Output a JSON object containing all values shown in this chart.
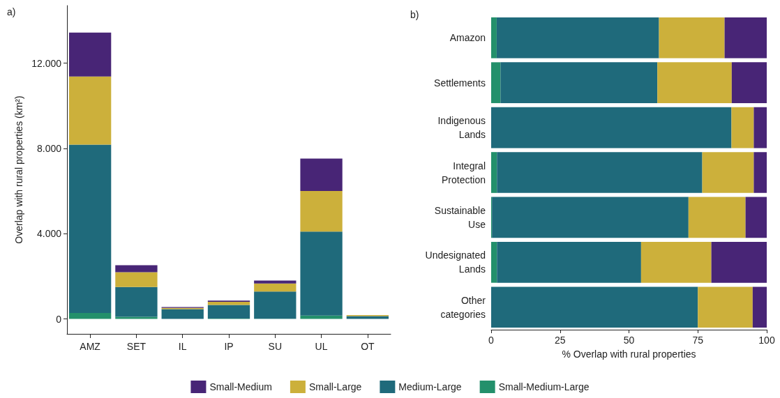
{
  "chart_data": [
    {
      "type": "bar",
      "stacked": true,
      "annotations": [
        "a)"
      ],
      "ylabel": "Overlap with rural properties (km²)",
      "categories": [
        "AMZ",
        "SET",
        "IL",
        "IP",
        "SU",
        "UL",
        "OT"
      ],
      "ylim": [
        -700,
        14700
      ],
      "yticks": [
        {
          "value": 0,
          "label": "0"
        },
        {
          "value": 4000,
          "label": "4.000"
        },
        {
          "value": 8000,
          "label": "8.000"
        },
        {
          "value": 12000,
          "label": "12.000"
        }
      ],
      "grid": false,
      "legend": "bottom",
      "series": [
        {
          "name": "Small-Medium-Large",
          "color": "#23906b",
          "values": [
            280,
            100,
            0,
            20,
            10,
            160,
            0
          ]
        },
        {
          "name": "Medium-Large",
          "color": "#1f6a7b",
          "values": [
            7900,
            1400,
            460,
            640,
            1280,
            3940,
            130
          ]
        },
        {
          "name": "Small-Large",
          "color": "#ccb03b",
          "values": [
            3190,
            690,
            60,
            140,
            370,
            1900,
            50
          ]
        },
        {
          "name": "Small-Medium",
          "color": "#482576",
          "values": [
            2060,
            330,
            40,
            60,
            140,
            1520,
            null
          ]
        }
      ]
    },
    {
      "type": "bar",
      "stacked": true,
      "orientation": "horizontal",
      "annotations": [
        "b)"
      ],
      "xlabel": "% Overlap with rural properties",
      "categories": [
        "Amazon",
        "Settlements",
        "Indigenous Lands",
        "Integral Protection",
        "Sustainable Use",
        "Undesignated Lands",
        "Other categories"
      ],
      "xlim": [
        0,
        100
      ],
      "xticks": [
        0,
        25,
        50,
        75,
        100
      ],
      "grid": false,
      "series": [
        {
          "color": "#23906b",
          "values": [
            2.0,
            3.4,
            0,
            2.1,
            0.3,
            2.1,
            0
          ]
        },
        {
          "color": "#1f6a7b",
          "values": [
            58.9,
            56.9,
            87.2,
            74.5,
            71.3,
            52.3,
            75.0
          ]
        },
        {
          "color": "#ccb03b",
          "values": [
            23.8,
            27.0,
            8.1,
            18.7,
            20.7,
            25.5,
            19.9
          ]
        },
        {
          "color": "#482576",
          "values": [
            15.3,
            12.7,
            4.7,
            4.7,
            7.7,
            20.1,
            5.1
          ]
        }
      ]
    }
  ]
}
